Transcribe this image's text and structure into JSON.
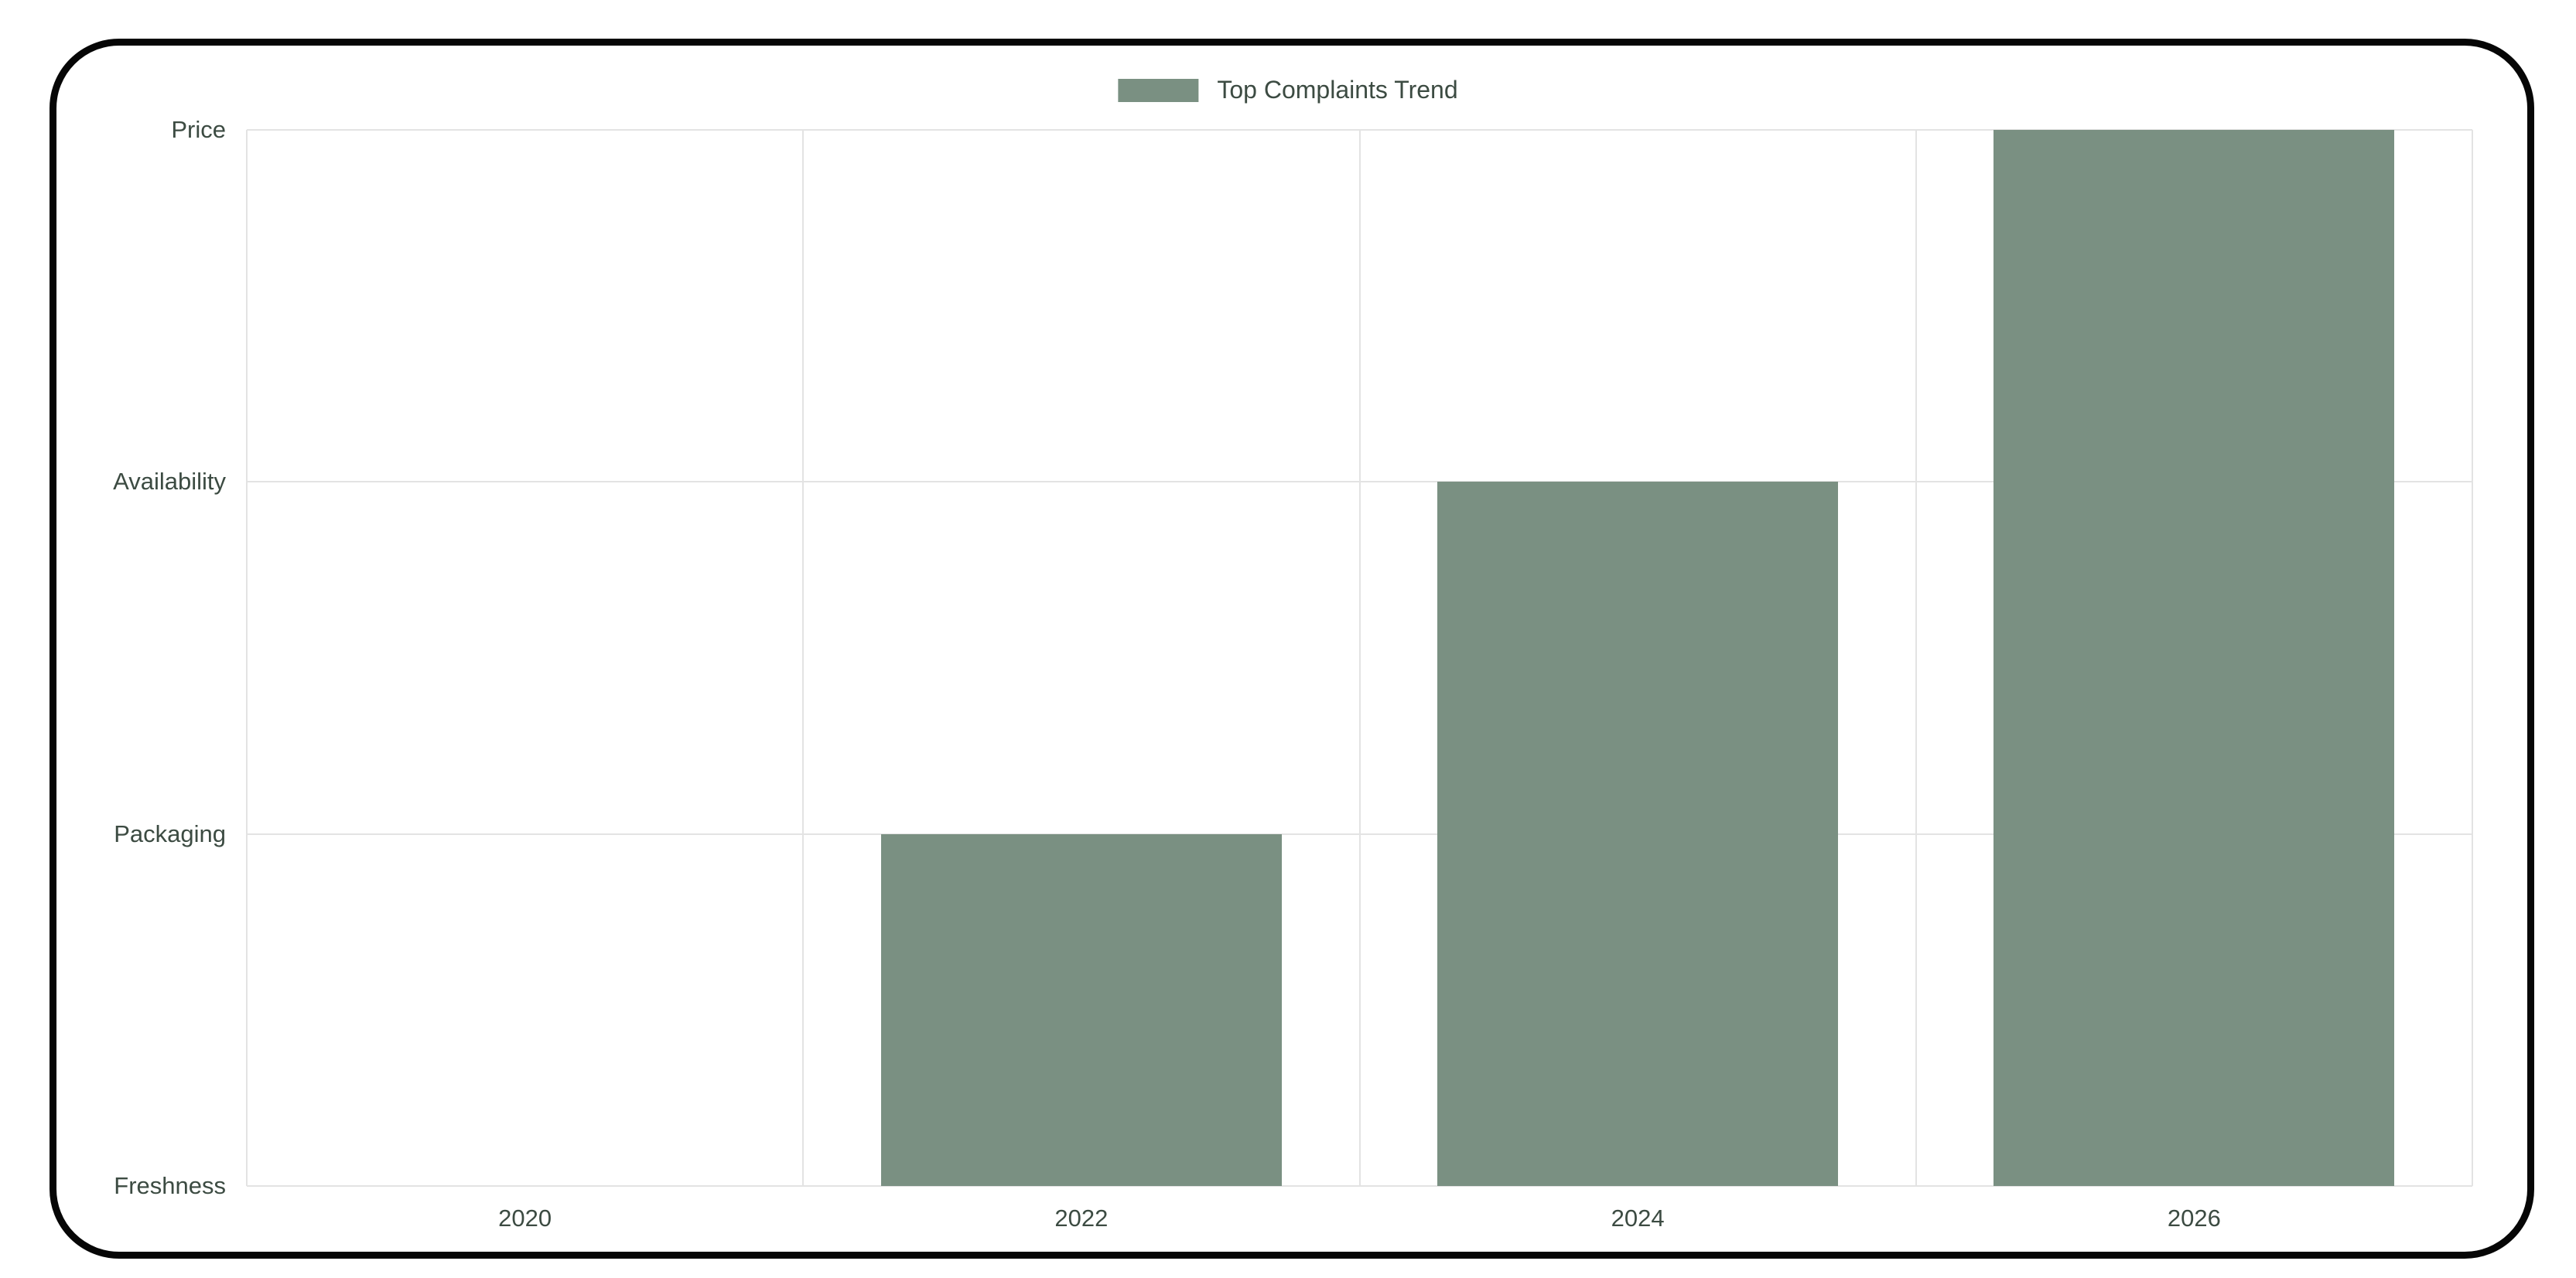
{
  "chart_data": {
    "type": "bar",
    "title": "Top Complaints Trend",
    "legend": {
      "label": "Top Complaints Trend",
      "position": "top"
    },
    "categories": [
      "2020",
      "2022",
      "2024",
      "2026"
    ],
    "series": [
      {
        "name": "Top Complaints Trend",
        "values": [
          0,
          1,
          2,
          3
        ]
      }
    ],
    "y_tick_labels": [
      "Freshness",
      "Packaging",
      "Availability",
      "Price"
    ],
    "points": [
      {
        "x": "2020",
        "y": "Freshness"
      },
      {
        "x": "2022",
        "y": "Packaging"
      },
      {
        "x": "2024",
        "y": "Availability"
      },
      {
        "x": "2026",
        "y": "Price"
      }
    ],
    "ylim": [
      0,
      3
    ],
    "grid": true,
    "legend_position": "top",
    "bar_color": "#7a9082",
    "axis_text_color": "#3c4b42",
    "grid_color": "#e3e3e3",
    "frame_border_color": "#060606",
    "background": "#ffffff"
  }
}
